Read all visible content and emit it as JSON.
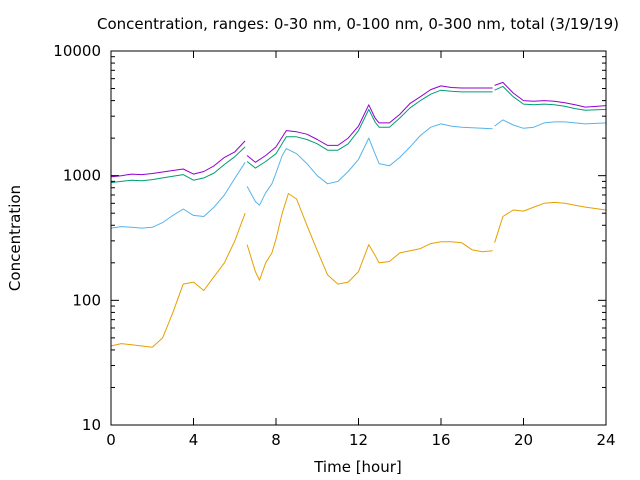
{
  "chart_data": {
    "type": "line",
    "title": "Concentration, ranges: 0-30 nm, 0-100 nm, 0-300 nm, total (3/19/19)",
    "xlabel": "Time [hour]",
    "ylabel": "Concentration",
    "xlim": [
      0,
      24
    ],
    "ylim": [
      10,
      10000
    ],
    "yscale": "log",
    "grid": false,
    "legend": "none",
    "x_ticks": [
      0,
      4,
      8,
      12,
      16,
      20,
      24
    ],
    "x_tick_labels": [
      "0",
      "4",
      "8",
      "12",
      "16",
      "20",
      "24"
    ],
    "y_ticks": [
      10,
      100,
      1000,
      10000
    ],
    "y_tick_labels": [
      "10",
      "100",
      "1000",
      "10000"
    ],
    "series": [
      {
        "color": "#e6a000",
        "segments": [
          [
            [
              0,
              43
            ],
            [
              0.5,
              45
            ],
            [
              1,
              44
            ],
            [
              1.5,
              43
            ],
            [
              2,
              42
            ],
            [
              2.5,
              50
            ],
            [
              3,
              80
            ],
            [
              3.5,
              135
            ],
            [
              4,
              140
            ],
            [
              4.5,
              120
            ],
            [
              5,
              155
            ],
            [
              5.5,
              200
            ],
            [
              6,
              300
            ],
            [
              6.5,
              500
            ]
          ],
          [
            [
              6.6,
              280
            ],
            [
              7,
              170
            ],
            [
              7.2,
              145
            ],
            [
              7.5,
              200
            ],
            [
              7.8,
              240
            ],
            [
              8,
              310
            ],
            [
              8.3,
              500
            ],
            [
              8.6,
              720
            ],
            [
              9,
              650
            ],
            [
              9.5,
              400
            ],
            [
              10,
              250
            ],
            [
              10.5,
              160
            ],
            [
              11,
              135
            ],
            [
              11.5,
              140
            ],
            [
              12,
              170
            ],
            [
              12.5,
              280
            ],
            [
              12.8,
              230
            ],
            [
              13,
              200
            ],
            [
              13.5,
              205
            ],
            [
              14,
              240
            ],
            [
              14.5,
              250
            ],
            [
              15,
              260
            ],
            [
              15.5,
              285
            ],
            [
              16,
              295
            ],
            [
              16.5,
              295
            ],
            [
              17,
              290
            ],
            [
              17.5,
              255
            ],
            [
              18,
              245
            ],
            [
              18.5,
              250
            ]
          ],
          [
            [
              18.6,
              290
            ],
            [
              19,
              470
            ],
            [
              19.5,
              530
            ],
            [
              20,
              520
            ],
            [
              20.5,
              560
            ],
            [
              21,
              600
            ],
            [
              21.5,
              610
            ],
            [
              22,
              600
            ],
            [
              22.5,
              580
            ],
            [
              23,
              560
            ],
            [
              24,
              530
            ]
          ]
        ]
      },
      {
        "color": "#56b4e9",
        "segments": [
          [
            [
              0,
              380
            ],
            [
              0.5,
              390
            ],
            [
              1,
              385
            ],
            [
              1.5,
              380
            ],
            [
              2,
              385
            ],
            [
              2.5,
              420
            ],
            [
              3,
              480
            ],
            [
              3.5,
              540
            ],
            [
              4,
              480
            ],
            [
              4.5,
              470
            ],
            [
              5,
              560
            ],
            [
              5.5,
              700
            ],
            [
              6,
              950
            ],
            [
              6.5,
              1280
            ]
          ],
          [
            [
              6.6,
              820
            ],
            [
              7,
              620
            ],
            [
              7.2,
              580
            ],
            [
              7.5,
              730
            ],
            [
              7.8,
              860
            ],
            [
              8,
              1050
            ],
            [
              8.3,
              1450
            ],
            [
              8.5,
              1650
            ],
            [
              9,
              1500
            ],
            [
              9.5,
              1250
            ],
            [
              10,
              1000
            ],
            [
              10.5,
              860
            ],
            [
              11,
              900
            ],
            [
              11.5,
              1080
            ],
            [
              12,
              1350
            ],
            [
              12.5,
              2000
            ],
            [
              12.8,
              1500
            ],
            [
              13,
              1250
            ],
            [
              13.5,
              1200
            ],
            [
              14,
              1400
            ],
            [
              14.5,
              1700
            ],
            [
              15,
              2100
            ],
            [
              15.5,
              2450
            ],
            [
              16,
              2600
            ],
            [
              16.5,
              2500
            ],
            [
              17,
              2450
            ],
            [
              17.5,
              2420
            ],
            [
              18,
              2400
            ],
            [
              18.5,
              2380
            ]
          ],
          [
            [
              18.6,
              2500
            ],
            [
              19,
              2800
            ],
            [
              19.5,
              2550
            ],
            [
              20,
              2400
            ],
            [
              20.5,
              2450
            ],
            [
              21,
              2650
            ],
            [
              21.5,
              2700
            ],
            [
              22,
              2700
            ],
            [
              22.5,
              2650
            ],
            [
              23,
              2600
            ],
            [
              24,
              2650
            ]
          ]
        ]
      },
      {
        "color": "#009e73",
        "segments": [
          [
            [
              0,
              880
            ],
            [
              0.5,
              900
            ],
            [
              1,
              920
            ],
            [
              1.5,
              910
            ],
            [
              2,
              930
            ],
            [
              2.5,
              960
            ],
            [
              3,
              990
            ],
            [
              3.5,
              1020
            ],
            [
              4,
              920
            ],
            [
              4.5,
              960
            ],
            [
              5,
              1050
            ],
            [
              5.5,
              1230
            ],
            [
              6,
              1420
            ],
            [
              6.5,
              1700
            ]
          ],
          [
            [
              6.6,
              1300
            ],
            [
              7,
              1150
            ],
            [
              7.5,
              1300
            ],
            [
              8,
              1500
            ],
            [
              8.5,
              2050
            ],
            [
              9,
              2050
            ],
            [
              9.5,
              1950
            ],
            [
              10,
              1800
            ],
            [
              10.5,
              1600
            ],
            [
              11,
              1600
            ],
            [
              11.5,
              1800
            ],
            [
              12,
              2300
            ],
            [
              12.5,
              3400
            ],
            [
              12.8,
              2700
            ],
            [
              13,
              2450
            ],
            [
              13.5,
              2450
            ],
            [
              14,
              2900
            ],
            [
              14.5,
              3500
            ],
            [
              15,
              4000
            ],
            [
              15.5,
              4500
            ],
            [
              16,
              4850
            ],
            [
              16.5,
              4750
            ],
            [
              17,
              4700
            ],
            [
              17.5,
              4700
            ],
            [
              18,
              4700
            ],
            [
              18.5,
              4700
            ]
          ],
          [
            [
              18.6,
              4850
            ],
            [
              19,
              5200
            ],
            [
              19.5,
              4300
            ],
            [
              20,
              3750
            ],
            [
              20.5,
              3700
            ],
            [
              21,
              3750
            ],
            [
              21.5,
              3700
            ],
            [
              22,
              3600
            ],
            [
              22.5,
              3450
            ],
            [
              23,
              3350
            ],
            [
              24,
              3400
            ]
          ]
        ]
      },
      {
        "color": "#9400d3",
        "segments": [
          [
            [
              0,
              980
            ],
            [
              0.5,
              1000
            ],
            [
              1,
              1030
            ],
            [
              1.5,
              1020
            ],
            [
              2,
              1040
            ],
            [
              2.5,
              1070
            ],
            [
              3,
              1100
            ],
            [
              3.5,
              1130
            ],
            [
              4,
              1030
            ],
            [
              4.5,
              1080
            ],
            [
              5,
              1200
            ],
            [
              5.5,
              1400
            ],
            [
              6,
              1550
            ],
            [
              6.5,
              1900
            ]
          ],
          [
            [
              6.6,
              1450
            ],
            [
              7,
              1280
            ],
            [
              7.5,
              1450
            ],
            [
              8,
              1700
            ],
            [
              8.5,
              2300
            ],
            [
              9,
              2250
            ],
            [
              9.5,
              2150
            ],
            [
              10,
              1950
            ],
            [
              10.5,
              1750
            ],
            [
              11,
              1750
            ],
            [
              11.5,
              2000
            ],
            [
              12,
              2500
            ],
            [
              12.5,
              3700
            ],
            [
              12.8,
              2900
            ],
            [
              13,
              2650
            ],
            [
              13.5,
              2650
            ],
            [
              14,
              3100
            ],
            [
              14.5,
              3800
            ],
            [
              15,
              4300
            ],
            [
              15.5,
              4900
            ],
            [
              16,
              5250
            ],
            [
              16.5,
              5100
            ],
            [
              17,
              5050
            ],
            [
              17.5,
              5050
            ],
            [
              18,
              5050
            ],
            [
              18.5,
              5050
            ]
          ],
          [
            [
              18.6,
              5300
            ],
            [
              19,
              5600
            ],
            [
              19.5,
              4600
            ],
            [
              20,
              4000
            ],
            [
              20.5,
              3950
            ],
            [
              21,
              4000
            ],
            [
              21.5,
              3950
            ],
            [
              22,
              3850
            ],
            [
              22.5,
              3700
            ],
            [
              23,
              3550
            ],
            [
              24,
              3650
            ]
          ]
        ]
      }
    ]
  }
}
